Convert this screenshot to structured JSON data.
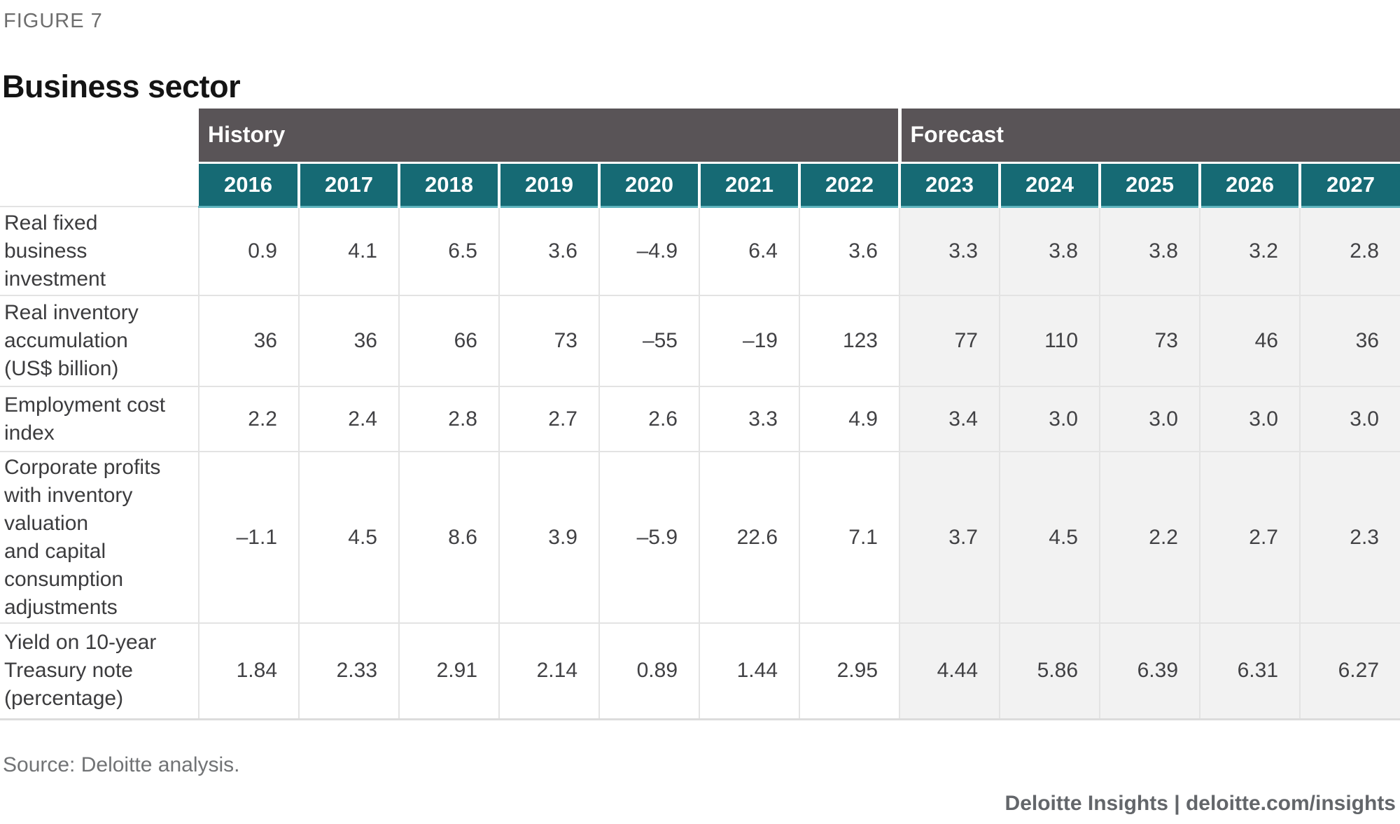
{
  "figure_label": "FIGURE 7",
  "title": "Business sector",
  "table": {
    "col_groups": [
      {
        "label": "History",
        "span": 7
      },
      {
        "label": "Forecast",
        "span": 5
      }
    ],
    "history_span": 7,
    "years": [
      "2016",
      "2017",
      "2018",
      "2019",
      "2020",
      "2021",
      "2022",
      "2023",
      "2024",
      "2025",
      "2026",
      "2027"
    ],
    "rows": [
      {
        "label": "Real fixed\nbusiness\ninvestment",
        "values": [
          "0.9",
          "4.1",
          "6.5",
          "3.6",
          "–4.9",
          "6.4",
          "3.6",
          "3.3",
          "3.8",
          "3.8",
          "3.2",
          "2.8"
        ]
      },
      {
        "label": "Real inventory\naccumulation\n(US$ billion)",
        "values": [
          "36",
          "36",
          "66",
          "73",
          "–55",
          "–19",
          "123",
          "77",
          "110",
          "73",
          "46",
          "36"
        ]
      },
      {
        "label": "Employment cost\nindex",
        "values": [
          "2.2",
          "2.4",
          "2.8",
          "2.7",
          "2.6",
          "3.3",
          "4.9",
          "3.4",
          "3.0",
          "3.0",
          "3.0",
          "3.0"
        ]
      },
      {
        "label": "Corporate profits\nwith inventory\nvaluation\nand capital\nconsumption\nadjustments",
        "values": [
          "–1.1",
          "4.5",
          "8.6",
          "3.9",
          "–5.9",
          "22.6",
          "7.1",
          "3.7",
          "4.5",
          "2.2",
          "2.7",
          "2.3"
        ]
      },
      {
        "label": "Yield on 10-year\nTreasury note\n(percentage)",
        "values": [
          "1.84",
          "2.33",
          "2.91",
          "2.14",
          "0.89",
          "1.44",
          "2.95",
          "4.44",
          "5.86",
          "6.39",
          "6.31",
          "6.27"
        ]
      }
    ]
  },
  "source": "Source: Deloitte analysis.",
  "footer": "Deloitte Insights | deloitte.com/insights",
  "colors": {
    "band_gray": "#595457",
    "year_teal": "#166a74",
    "teal_underline": "#5eb3bd",
    "forecast_bg": "#f2f2f2",
    "grid_line": "#e3e3e3",
    "text_dark": "#414144",
    "title_text": "#141414",
    "muted_text": "#6d6d6d"
  },
  "chart_data": {
    "type": "table",
    "title": "Business sector",
    "figure": "FIGURE 7",
    "column_groups": [
      {
        "label": "History",
        "years": [
          2016,
          2017,
          2018,
          2019,
          2020,
          2021,
          2022
        ]
      },
      {
        "label": "Forecast",
        "years": [
          2023,
          2024,
          2025,
          2026,
          2027
        ]
      }
    ],
    "categories": [
      2016,
      2017,
      2018,
      2019,
      2020,
      2021,
      2022,
      2023,
      2024,
      2025,
      2026,
      2027
    ],
    "series": [
      {
        "name": "Real fixed business investment",
        "values": [
          0.9,
          4.1,
          6.5,
          3.6,
          -4.9,
          6.4,
          3.6,
          3.3,
          3.8,
          3.8,
          3.2,
          2.8
        ]
      },
      {
        "name": "Real inventory accumulation (US$ billion)",
        "values": [
          36,
          36,
          66,
          73,
          -55,
          -19,
          123,
          77,
          110,
          73,
          46,
          36
        ]
      },
      {
        "name": "Employment cost index",
        "values": [
          2.2,
          2.4,
          2.8,
          2.7,
          2.6,
          3.3,
          4.9,
          3.4,
          3.0,
          3.0,
          3.0,
          3.0
        ]
      },
      {
        "name": "Corporate profits with inventory valuation and capital consumption adjustments",
        "values": [
          -1.1,
          4.5,
          8.6,
          3.9,
          -5.9,
          22.6,
          7.1,
          3.7,
          4.5,
          2.2,
          2.7,
          2.3
        ]
      },
      {
        "name": "Yield on 10-year Treasury note (percentage)",
        "values": [
          1.84,
          2.33,
          2.91,
          2.14,
          0.89,
          1.44,
          2.95,
          4.44,
          5.86,
          6.39,
          6.31,
          6.27
        ]
      }
    ],
    "source": "Source: Deloitte analysis."
  }
}
